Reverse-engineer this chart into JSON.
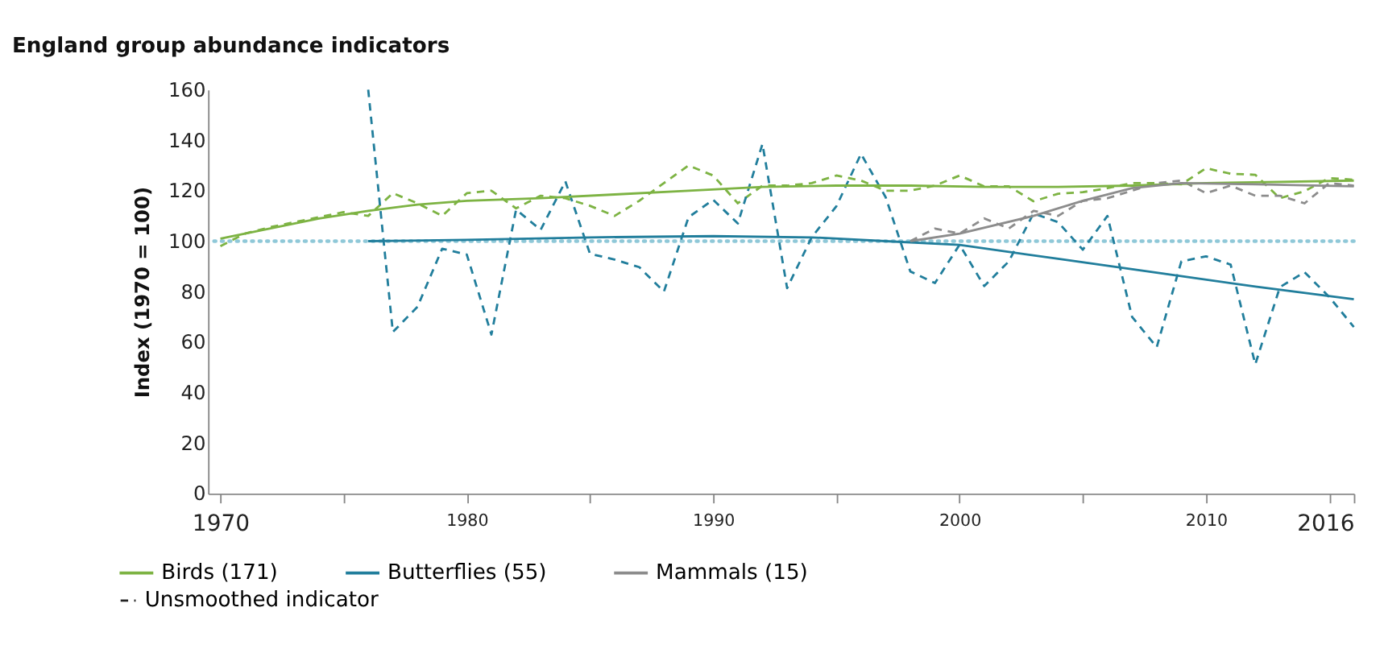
{
  "chart_data": {
    "type": "line",
    "title": "England group abundance indicators",
    "ylabel": "Index (1970 = 100)",
    "xlim": [
      1969.5,
      2016
    ],
    "xticks": [
      1970,
      {
        "value": 1975,
        "label": null
      },
      1980,
      {
        "value": 1985,
        "label": null
      },
      1990,
      {
        "value": 1995,
        "label": null
      },
      2000,
      {
        "value": 2005,
        "label": null
      },
      2010,
      {
        "value": 2015,
        "label": null
      },
      2016
    ],
    "ylim": [
      0,
      160
    ],
    "yticks": [
      0,
      20,
      40,
      60,
      80,
      100,
      120,
      140,
      160
    ],
    "grid": false,
    "legend": "bottom",
    "marker": "none",
    "ref_lines": [
      {
        "axis": "y",
        "value": 100,
        "line_style": "dotted",
        "color": "#8fc8d8"
      }
    ],
    "annotations": [
      "Unsmoothed indicator"
    ],
    "series": [
      {
        "name": "Birds (171)",
        "color": "#7db343",
        "line_style": "solid",
        "x": [
          1970,
          1972,
          1974,
          1976,
          1978,
          1980,
          1983,
          1986,
          1989,
          1992,
          1995,
          1998,
          2001,
          2004,
          2007,
          2010,
          2013,
          2016
        ],
        "values": [
          101,
          105,
          109,
          112,
          114.5,
          116,
          117,
          118.5,
          120,
          121.5,
          122,
          122,
          121.5,
          121.5,
          122,
          123,
          123.5,
          124
        ]
      },
      {
        "name": "Butterflies (55)",
        "color": "#217e9c",
        "line_style": "solid",
        "x": [
          1976,
          1980,
          1985,
          1990,
          1994,
          1997,
          2000,
          2004,
          2008,
          2012,
          2016
        ],
        "values": [
          100,
          100.5,
          101.5,
          102,
          101.5,
          100,
          98.5,
          93,
          87.5,
          82,
          77
        ]
      },
      {
        "name": "Mammals (15)",
        "color": "#8c8c8c",
        "line_style": "solid",
        "x": [
          1998,
          2000,
          2003,
          2005,
          2007,
          2009,
          2012,
          2016
        ],
        "values": [
          100,
          103,
          110,
          116,
          121,
          123,
          122.5,
          121.7
        ]
      },
      {
        "color": "#7db343",
        "line_style": "dashed",
        "x": [
          1970,
          1971,
          1972,
          1973,
          1974,
          1975,
          1976,
          1977,
          1978,
          1979,
          1980,
          1981,
          1982,
          1983,
          1984,
          1985,
          1986,
          1987,
          1988,
          1989,
          1990,
          1991,
          1992,
          1993,
          1994,
          1995,
          1996,
          1997,
          1998,
          1999,
          2000,
          2001,
          2002,
          2003,
          2004,
          2005,
          2006,
          2007,
          2008,
          2009,
          2010,
          2011,
          2012,
          2013,
          2014,
          2015,
          2016
        ],
        "values": [
          98,
          103,
          105.5,
          107.5,
          109.5,
          111.5,
          110,
          119,
          115,
          110,
          119,
          120,
          113,
          118,
          117,
          114,
          110,
          116,
          123,
          130,
          126,
          115,
          122,
          122,
          123,
          126,
          124,
          120,
          120,
          122,
          126,
          121.7,
          121.7,
          115.8,
          118.8,
          119.4,
          121,
          123,
          123,
          122.5,
          128.9,
          126.7,
          126.3,
          117,
          119.8,
          125,
          124.3
        ]
      },
      {
        "color": "#217e9c",
        "line_style": "dashed",
        "x": [
          1976,
          1977,
          1978,
          1979,
          1980,
          1981,
          1982,
          1983,
          1984,
          1985,
          1986,
          1987,
          1988,
          1989,
          1990,
          1991,
          1992,
          1993,
          1994,
          1995,
          1996,
          1997,
          1998,
          1999,
          2000,
          2001,
          2002,
          2003,
          2004,
          2005,
          2006,
          2007,
          2008,
          2009,
          2010,
          2011,
          2012,
          2013,
          2014,
          2015,
          2016
        ],
        "values": [
          160,
          64,
          74,
          97,
          94.7,
          63,
          112.5,
          104.5,
          123.7,
          95,
          92.7,
          89.7,
          80,
          109.5,
          116.4,
          107,
          138.5,
          81.4,
          101.6,
          113.8,
          134.6,
          117.4,
          88,
          83.4,
          98.6,
          82.2,
          92,
          111,
          107.5,
          96.6,
          110,
          70,
          58,
          92,
          94,
          90.7,
          51.2,
          81.8,
          87.7,
          77.9,
          66
        ]
      },
      {
        "color": "#8c8c8c",
        "line_style": "dashed",
        "x": [
          1998,
          1999,
          2000,
          2001,
          2002,
          2003,
          2004,
          2005,
          2006,
          2007,
          2008,
          2009,
          2010,
          2011,
          2012,
          2013,
          2014,
          2015,
          2016
        ],
        "values": [
          100,
          105,
          103,
          109,
          105,
          112,
          110,
          116,
          117,
          120,
          123,
          124,
          119,
          122,
          118,
          118,
          115,
          123,
          122
        ]
      }
    ]
  }
}
